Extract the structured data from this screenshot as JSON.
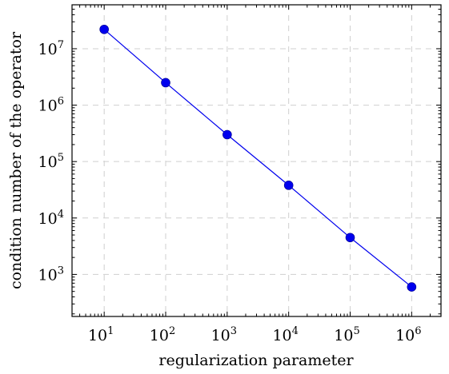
{
  "chart_data": {
    "type": "line",
    "title": "",
    "xlabel": "regularization parameter",
    "ylabel": "condition number of the operator",
    "xscale": "log",
    "yscale": "log",
    "xlim": [
      3,
      3000000
    ],
    "ylim": [
      180,
      60000000
    ],
    "grid": true,
    "legend": "none",
    "x_ticks": [
      {
        "base": "10",
        "exp": "1",
        "value": 10
      },
      {
        "base": "10",
        "exp": "2",
        "value": 100
      },
      {
        "base": "10",
        "exp": "3",
        "value": 1000
      },
      {
        "base": "10",
        "exp": "4",
        "value": 10000
      },
      {
        "base": "10",
        "exp": "5",
        "value": 100000
      },
      {
        "base": "10",
        "exp": "6",
        "value": 1000000
      }
    ],
    "y_ticks": [
      {
        "base": "10",
        "exp": "3",
        "value": 1000
      },
      {
        "base": "10",
        "exp": "4",
        "value": 10000
      },
      {
        "base": "10",
        "exp": "5",
        "value": 100000
      },
      {
        "base": "10",
        "exp": "6",
        "value": 1000000
      },
      {
        "base": "10",
        "exp": "7",
        "value": 10000000
      }
    ],
    "series": [
      {
        "color": "#0000ee",
        "x": [
          10,
          100,
          1000,
          10000,
          100000,
          1000000
        ],
        "y": [
          22000000,
          2500000,
          300000,
          38000,
          4500,
          600
        ]
      }
    ]
  }
}
